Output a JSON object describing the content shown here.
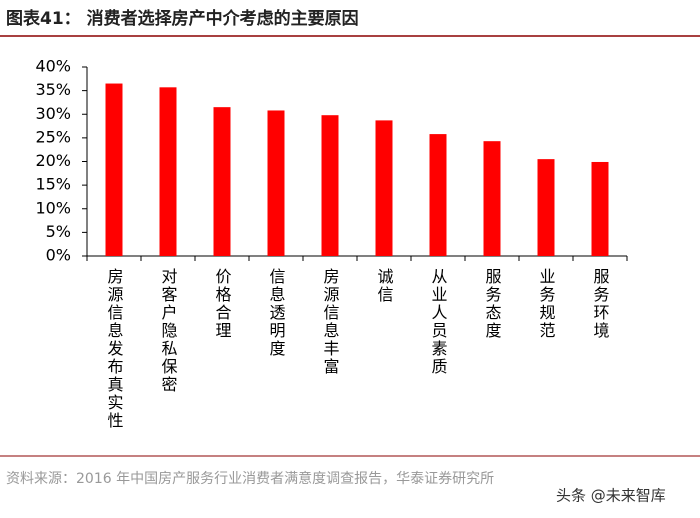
{
  "chart_data": {
    "type": "bar",
    "title": "图表41：  消费者选择房产中介考虑的主要原因",
    "categories": [
      "房源信息发布真实性",
      "对客户隐私保密",
      "价格合理",
      "信息透明度",
      "房源信息丰富",
      "诚信",
      "从业人员素质",
      "服务态度",
      "业务规范",
      "服务环境"
    ],
    "values": [
      36.5,
      35.7,
      31.5,
      30.8,
      29.8,
      28.7,
      25.8,
      24.3,
      20.5,
      19.9
    ],
    "color": "#ff0000",
    "ylim": [
      0,
      40
    ],
    "yticks": [
      {
        "value": 0,
        "label": "0%"
      },
      {
        "value": 5,
        "label": "5%"
      },
      {
        "value": 10,
        "label": "10%"
      },
      {
        "value": 15,
        "label": "15%"
      },
      {
        "value": 20,
        "label": "20%"
      },
      {
        "value": 25,
        "label": "25%"
      },
      {
        "value": 30,
        "label": "30%"
      },
      {
        "value": 35,
        "label": "35%"
      },
      {
        "value": 40,
        "label": "40%"
      }
    ],
    "grid": false,
    "source": "资料来源：2016 年中国房产服务行业消费者满意度调查报告，华泰证券研究所",
    "watermark": "头条 @未来智库"
  }
}
